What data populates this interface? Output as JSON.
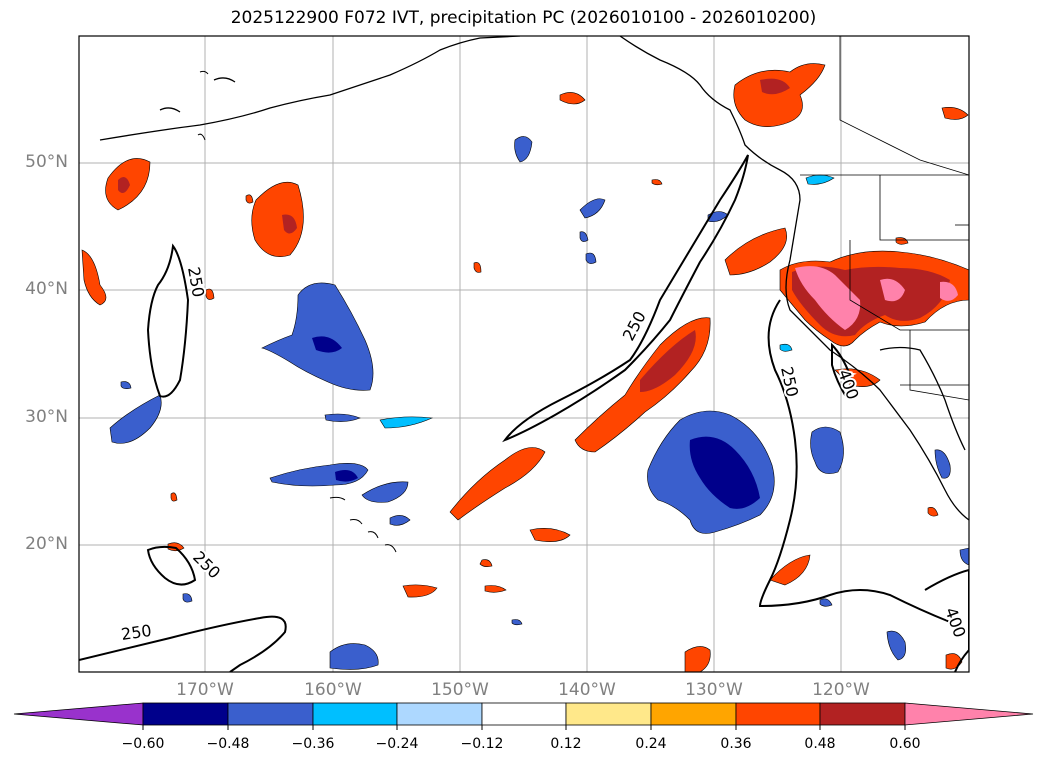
{
  "title": "2025122900 F072 IVT, precipitation PC (2026010100 - 2026010200)",
  "map": {
    "lon_range": [
      -180,
      -110
    ],
    "lat_range": [
      10,
      60
    ],
    "lat_ticks": [
      "50°N",
      "40°N",
      "30°N",
      "20°N"
    ],
    "lon_ticks": [
      "170°W",
      "160°W",
      "150°W",
      "140°W",
      "130°W",
      "120°W"
    ],
    "contour_labels": [
      "250",
      "250",
      "250",
      "250",
      "250",
      "400",
      "400"
    ]
  },
  "colorbar": {
    "levels": [
      "−0.60",
      "−0.48",
      "−0.36",
      "−0.24",
      "−0.12",
      "0.12",
      "0.24",
      "0.36",
      "0.48",
      "0.60"
    ],
    "colors": [
      "#9932cc",
      "#00008b",
      "#3a5fcd",
      "#00bfff",
      "#add8ff",
      "#ffffff",
      "#ffe88a",
      "#ffa500",
      "#ff4500",
      "#b22222",
      "#ff82ab"
    ]
  }
}
